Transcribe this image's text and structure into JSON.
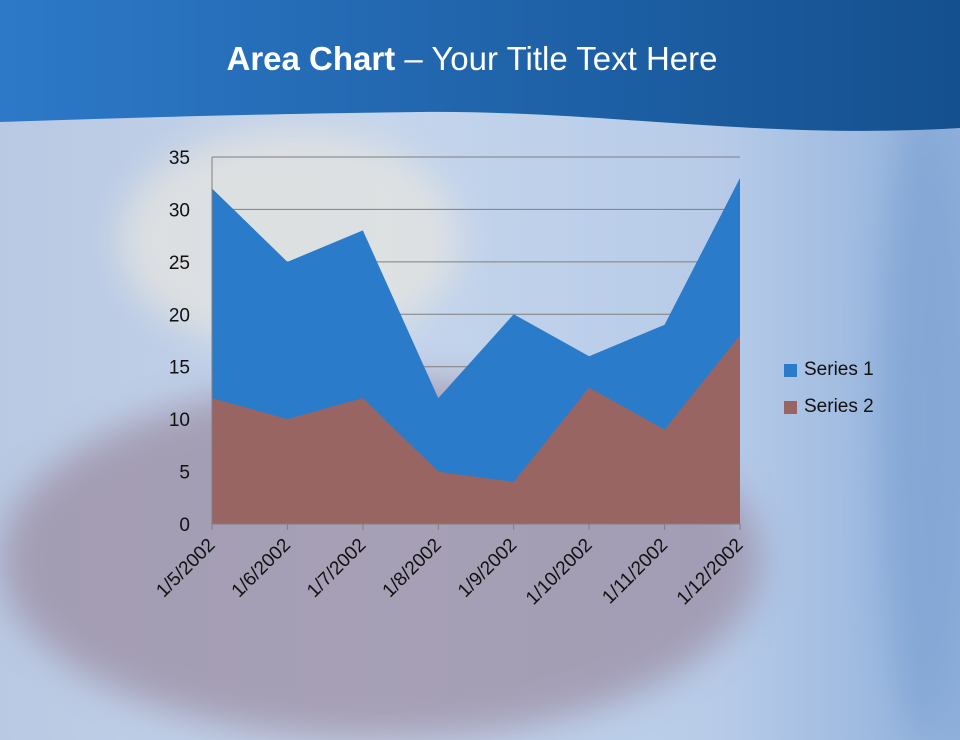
{
  "slide": {
    "title_bold": "Area Chart",
    "title_rest": " – Your Title Text Here"
  },
  "chart_data": {
    "type": "area",
    "title": "",
    "xlabel": "",
    "ylabel": "",
    "categories": [
      "1/5/2002",
      "1/6/2002",
      "1/7/2002",
      "1/8/2002",
      "1/9/2002",
      "1/10/2002",
      "1/11/2002",
      "1/12/2002"
    ],
    "series": [
      {
        "name": "Series 1",
        "color": "#2b7bcb",
        "values": [
          32,
          25,
          28,
          12,
          20,
          16,
          19,
          33
        ]
      },
      {
        "name": "Series 2",
        "color": "#986563",
        "values": [
          12,
          10,
          12,
          5,
          4,
          13,
          9,
          18
        ]
      }
    ],
    "ylim": [
      0,
      35
    ],
    "yticks": [
      0,
      5,
      10,
      15,
      20,
      25,
      30,
      35
    ],
    "grid": true,
    "legend_position": "right"
  }
}
